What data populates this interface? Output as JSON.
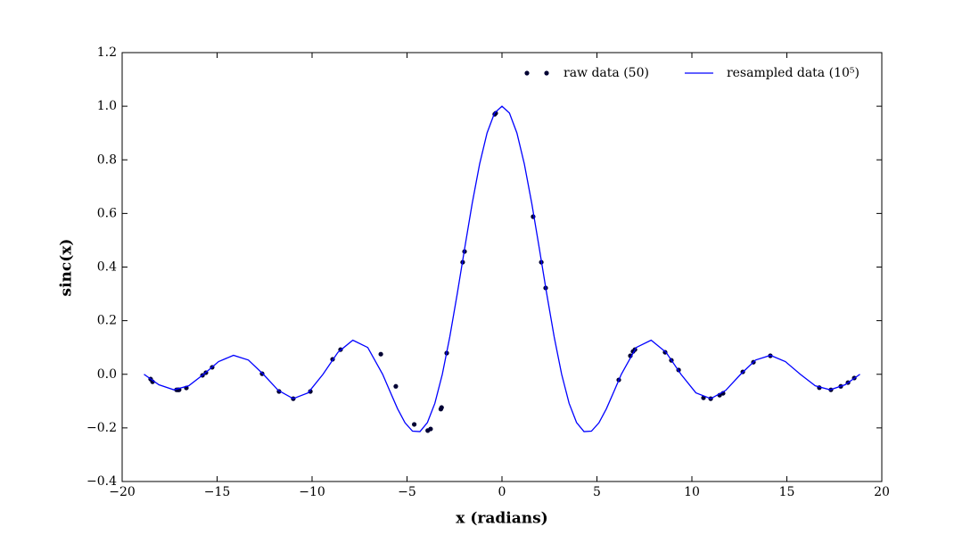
{
  "chart_data": {
    "type": "line",
    "xlabel": "x (radians)",
    "ylabel": "sinc(x)",
    "xlim": [
      -20,
      20
    ],
    "ylim": [
      -0.4,
      1.2
    ],
    "xticks": [
      {
        "value": -20,
        "label": "−20"
      },
      {
        "value": -15,
        "label": "−15"
      },
      {
        "value": -10,
        "label": "−10"
      },
      {
        "value": -5,
        "label": "−5"
      },
      0,
      5,
      10,
      15,
      20
    ],
    "yticks": [
      {
        "value": -0.4,
        "label": "−0.4"
      },
      {
        "value": -0.2,
        "label": "−0.2"
      },
      {
        "value": 0,
        "label": "0.0"
      },
      0.2,
      0.4,
      0.6,
      0.8,
      {
        "value": 1,
        "label": "1.0"
      },
      1.2
    ],
    "legend": "upper right",
    "series": [
      {
        "name": "raw data (50)",
        "type": "scatter",
        "color": "#000033",
        "x": [
          -18.5,
          -18.4,
          -17.14,
          -17.04,
          -17.0,
          -16.62,
          -15.77,
          -15.59,
          -15.26,
          -12.63,
          -11.74,
          -10.99,
          -10.09,
          -8.92,
          -8.5,
          -6.38,
          -5.59,
          -4.62,
          -3.91,
          -3.76,
          -3.22,
          -3.18,
          -2.91,
          -2.07,
          -1.97,
          -0.38,
          -0.33,
          1.64,
          2.07,
          2.3,
          6.15,
          6.76,
          6.9,
          7.0,
          8.59,
          8.92,
          9.3,
          10.61,
          10.99,
          11.46,
          11.64,
          12.68,
          13.24,
          14.13,
          16.71,
          17.32,
          17.84,
          18.22,
          18.55,
          -17.08
        ],
        "values": [
          -0.018,
          -0.028,
          -0.058,
          -0.058,
          -0.058,
          -0.051,
          -0.004,
          0.006,
          0.026,
          0.002,
          -0.064,
          -0.091,
          -0.064,
          0.056,
          0.092,
          0.075,
          -0.045,
          -0.187,
          -0.21,
          -0.204,
          -0.13,
          -0.124,
          0.079,
          0.418,
          0.458,
          0.97,
          0.974,
          0.588,
          0.418,
          0.322,
          -0.021,
          0.069,
          0.085,
          0.092,
          0.082,
          0.052,
          0.016,
          -0.088,
          -0.091,
          -0.078,
          -0.071,
          0.009,
          0.045,
          0.069,
          -0.05,
          -0.058,
          -0.045,
          -0.031,
          -0.014,
          -0.058
        ]
      },
      {
        "name": "resampled data (10⁵)",
        "type": "line",
        "color": "#0000ff",
        "x": [
          -18.8496,
          -18.0642,
          -17.2788,
          -16.4934,
          -15.708,
          -14.9226,
          -14.1372,
          -13.3518,
          -12.5664,
          -11.781,
          -10.9956,
          -10.2102,
          -9.4248,
          -8.6394,
          -7.854,
          -7.0686,
          -6.2832,
          -5.8905,
          -5.4978,
          -5.1051,
          -4.7124,
          -4.3197,
          -3.927,
          -3.5343,
          -3.1416,
          -2.7489,
          -2.3562,
          -1.9635,
          -1.5708,
          -1.1781,
          -0.7854,
          -0.3927,
          0,
          0.3927,
          0.7854,
          1.1781,
          1.5708,
          1.9635,
          2.3562,
          2.7489,
          3.1416,
          3.5343,
          3.927,
          4.3197,
          4.7124,
          5.1051,
          5.4978,
          5.8905,
          6.2832,
          7.0686,
          7.854,
          8.6394,
          9.4248,
          10.2102,
          10.9956,
          11.781,
          12.5664,
          13.3518,
          14.1372,
          14.9226,
          15.708,
          16.4934,
          17.2788,
          18.0642,
          18.8496
        ],
        "values": [
          0,
          -0.0391,
          -0.0579,
          -0.0429,
          0,
          0.0474,
          0.0707,
          0.053,
          0,
          -0.06,
          -0.0909,
          -0.0693,
          0,
          0.0818,
          0.1273,
          0.1,
          0,
          -0.065,
          -0.1286,
          -0.181,
          -0.2122,
          -0.2139,
          -0.1801,
          -0.1083,
          0,
          0.1392,
          0.3001,
          0.4705,
          0.6366,
          0.7842,
          0.9003,
          0.9745,
          1,
          0.9745,
          0.9003,
          0.7842,
          0.6366,
          0.4705,
          0.3001,
          0.1392,
          0,
          -0.1083,
          -0.1801,
          -0.2139,
          -0.2122,
          -0.181,
          -0.1286,
          -0.065,
          0,
          0.1,
          0.1273,
          0.0818,
          0,
          -0.0693,
          -0.0909,
          -0.06,
          0,
          0.053,
          0.0707,
          0.0474,
          0,
          -0.0429,
          -0.0579,
          -0.0391,
          0
        ]
      }
    ]
  }
}
